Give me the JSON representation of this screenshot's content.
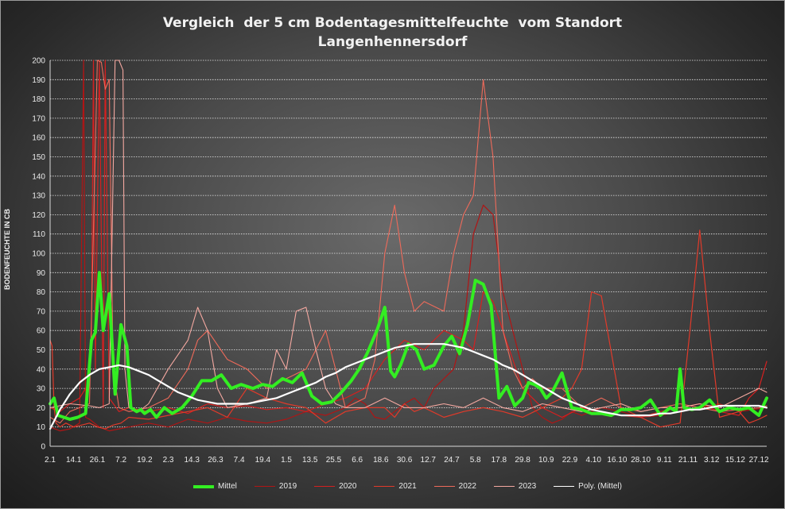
{
  "chart_data": {
    "type": "line",
    "title_line1": "Vergleich  der 5 cm Bodentagesmittelfeuchte  vom Standort",
    "title_line2": "Langenhennersdorf",
    "ylabel": "BODENFEUCHTE IN CB",
    "ylim": [
      0,
      200
    ],
    "yticks": [
      0,
      10,
      20,
      30,
      40,
      50,
      60,
      70,
      80,
      90,
      100,
      110,
      120,
      130,
      140,
      150,
      160,
      170,
      180,
      190,
      200
    ],
    "xticks": [
      "2.1",
      "14.1",
      "26.1",
      "7.2",
      "19.2",
      "2.3",
      "14.3",
      "26.3",
      "7.4",
      "19.4",
      "1.5",
      "13.5",
      "25.5",
      "6.6",
      "18.6",
      "30.6",
      "12.7",
      "24.7",
      "5.8",
      "17.8",
      "29.8",
      "10.9",
      "22.9",
      "4.10",
      "16.10",
      "28.10",
      "9.11",
      "21.11",
      "3.12",
      "15.12",
      "27.12"
    ],
    "grid": true,
    "legend_position": "bottom",
    "series": [
      {
        "name": "Mittel",
        "color": "#33ee22",
        "width": 4,
        "x": [
          0,
          2,
          4,
          7,
          10,
          14,
          18,
          21,
          23,
          25,
          27,
          30,
          33,
          36,
          39,
          41,
          44,
          46,
          48,
          51,
          54,
          58,
          62,
          67,
          72,
          77,
          82,
          87,
          92,
          97,
          103,
          108,
          113,
          118,
          123,
          128,
          133,
          138,
          143,
          148,
          153,
          157,
          161,
          166,
          170,
          173,
          175,
          178,
          182,
          186,
          190,
          195,
          200,
          204,
          208,
          212,
          216,
          220,
          224,
          228,
          232,
          236,
          240,
          243,
          246,
          249,
          252,
          255,
          260,
          265,
          270,
          275,
          280,
          285,
          290,
          295,
          300,
          305,
          310,
          315,
          318,
          320,
          322,
          326,
          330,
          335,
          340,
          345,
          350,
          355,
          360,
          364
        ],
        "y": [
          22,
          25,
          16,
          15,
          14,
          15,
          17,
          55,
          59,
          90,
          60,
          79,
          27,
          63,
          52,
          20,
          18,
          19,
          17,
          19,
          15,
          20,
          17,
          20,
          26,
          34,
          34,
          37,
          30,
          32,
          30,
          32,
          31,
          35,
          33,
          38,
          26,
          22,
          23,
          28,
          34,
          40,
          48,
          60,
          72,
          39,
          36,
          42,
          53,
          50,
          40,
          42,
          52,
          57,
          48,
          63,
          86,
          84,
          73,
          25,
          31,
          21,
          25,
          33,
          32,
          30,
          25,
          28,
          38,
          20,
          19,
          17,
          17,
          16,
          19,
          19,
          20,
          24,
          16,
          20,
          18,
          40,
          20,
          19,
          20,
          24,
          18,
          20,
          19,
          20,
          16,
          25
        ]
      },
      {
        "name": "2019",
        "color": "#b01515",
        "width": 1.2,
        "x": [
          0,
          5,
          10,
          15,
          17,
          18,
          20,
          25,
          30,
          35,
          40,
          50,
          60,
          70,
          80,
          90,
          100,
          110,
          120,
          130,
          140,
          150,
          155,
          160,
          165,
          170,
          175,
          180,
          185,
          190,
          195,
          200,
          205,
          210,
          215,
          220,
          225,
          230,
          235,
          240,
          245,
          250,
          255,
          260,
          265,
          270,
          280,
          290,
          300,
          310,
          320,
          330,
          340,
          350,
          364
        ],
        "y": [
          10,
          8,
          9,
          12,
          200,
          15,
          14,
          10,
          8,
          9,
          10,
          12,
          10,
          14,
          12,
          15,
          13,
          12,
          14,
          18,
          16,
          20,
          25,
          22,
          15,
          14,
          18,
          22,
          25,
          20,
          30,
          35,
          40,
          60,
          110,
          125,
          120,
          80,
          60,
          40,
          20,
          15,
          12,
          14,
          18,
          16,
          20,
          18,
          15,
          16,
          18,
          20,
          22,
          18,
          20
        ]
      },
      {
        "name": "2020",
        "color": "#d42020",
        "width": 1.2,
        "x": [
          0,
          5,
          10,
          15,
          18,
          20,
          21,
          22,
          23,
          25,
          27,
          28,
          30,
          35,
          40,
          45,
          50,
          60,
          70,
          80,
          90,
          100,
          110,
          120,
          130,
          140,
          150,
          160,
          170,
          180,
          190,
          200,
          210,
          215,
          220,
          225,
          230,
          240,
          250,
          260,
          270,
          280,
          290,
          300,
          310,
          320,
          330,
          340,
          350,
          355,
          360,
          364
        ],
        "y": [
          20,
          18,
          22,
          25,
          30,
          30,
          60,
          200,
          40,
          200,
          20,
          200,
          25,
          18,
          20,
          19,
          18,
          20,
          17,
          22,
          20,
          21,
          19,
          20,
          18,
          22,
          25,
          30,
          45,
          55,
          50,
          60,
          55,
          50,
          80,
          75,
          60,
          30,
          20,
          15,
          20,
          18,
          16,
          15,
          18,
          20,
          22,
          18,
          16,
          25,
          30,
          44
        ]
      },
      {
        "name": "2021",
        "color": "#e03a2a",
        "width": 1.2,
        "x": [
          0,
          1,
          2,
          3,
          5,
          8,
          12,
          16,
          20,
          24,
          28,
          32,
          36,
          40,
          50,
          60,
          70,
          80,
          90,
          100,
          110,
          120,
          130,
          140,
          150,
          160,
          170,
          175,
          180,
          185,
          190,
          200,
          210,
          220,
          230,
          240,
          250,
          260,
          265,
          270,
          275,
          280,
          290,
          300,
          310,
          320,
          325,
          330,
          335,
          340,
          350,
          355,
          360,
          364
        ],
        "y": [
          55,
          52,
          20,
          12,
          10,
          12,
          10,
          11,
          12,
          10,
          9,
          11,
          12,
          15,
          14,
          16,
          18,
          20,
          15,
          30,
          25,
          22,
          20,
          12,
          18,
          20,
          20,
          15,
          22,
          18,
          20,
          15,
          18,
          20,
          18,
          15,
          20,
          25,
          30,
          40,
          80,
          78,
          20,
          15,
          10,
          12,
          60,
          112,
          60,
          15,
          18,
          12,
          14,
          16
        ]
      },
      {
        "name": "2022",
        "color": "#ee6a5a",
        "width": 1.1,
        "x": [
          0,
          5,
          10,
          15,
          20,
          24,
          26,
          28,
          30,
          32,
          35,
          40,
          50,
          60,
          70,
          75,
          80,
          90,
          100,
          110,
          120,
          130,
          135,
          140,
          150,
          160,
          165,
          170,
          175,
          180,
          185,
          190,
          200,
          205,
          210,
          215,
          220,
          225,
          230,
          235,
          240,
          245,
          250,
          260,
          270,
          280,
          290,
          300,
          310,
          320,
          330,
          340,
          350,
          360,
          364
        ],
        "y": [
          15,
          12,
          18,
          20,
          22,
          200,
          199,
          185,
          190,
          40,
          20,
          18,
          20,
          25,
          40,
          55,
          60,
          45,
          40,
          30,
          35,
          40,
          50,
          60,
          20,
          25,
          45,
          100,
          125,
          90,
          70,
          75,
          70,
          100,
          120,
          130,
          190,
          150,
          60,
          40,
          30,
          35,
          30,
          30,
          20,
          25,
          20,
          18,
          20,
          22,
          20,
          18,
          19,
          20,
          21
        ]
      },
      {
        "name": "2023",
        "color": "#f4a8a0",
        "width": 1.1,
        "x": [
          0,
          10,
          20,
          25,
          30,
          33,
          35,
          37,
          38,
          40,
          45,
          50,
          60,
          70,
          75,
          80,
          85,
          90,
          100,
          110,
          115,
          120,
          125,
          130,
          135,
          140,
          145,
          150,
          160,
          170,
          180,
          190,
          200,
          210,
          220,
          230,
          240,
          250,
          260,
          270,
          280,
          290,
          300,
          310,
          320,
          330,
          340,
          350,
          360,
          364
        ],
        "y": [
          20,
          22,
          21,
          20,
          22,
          200,
          200,
          195,
          40,
          20,
          18,
          22,
          40,
          55,
          72,
          60,
          30,
          20,
          22,
          25,
          50,
          40,
          70,
          72,
          50,
          30,
          22,
          20,
          20,
          25,
          20,
          20,
          22,
          20,
          25,
          20,
          18,
          22,
          20,
          18,
          20,
          22,
          18,
          20,
          20,
          22,
          20,
          25,
          30,
          28
        ]
      },
      {
        "name": "Poly. (Mittel)",
        "color": "#ffffff",
        "width": 2.2,
        "x": [
          0,
          5,
          10,
          15,
          20,
          25,
          30,
          35,
          40,
          45,
          50,
          55,
          60,
          65,
          70,
          75,
          80,
          85,
          90,
          95,
          100,
          105,
          110,
          115,
          120,
          125,
          130,
          135,
          140,
          145,
          150,
          155,
          160,
          165,
          170,
          175,
          180,
          185,
          190,
          195,
          200,
          205,
          210,
          215,
          220,
          225,
          230,
          235,
          240,
          245,
          250,
          255,
          260,
          265,
          270,
          275,
          280,
          285,
          290,
          295,
          300,
          305,
          310,
          315,
          320,
          325,
          330,
          335,
          340,
          345,
          350,
          355,
          360,
          364
        ],
        "y": [
          9,
          19,
          27,
          33,
          37,
          40,
          41,
          42,
          41,
          39,
          37,
          34,
          31,
          28,
          26,
          24,
          23,
          22,
          22,
          22,
          22,
          23,
          24,
          25,
          27,
          29,
          31,
          33,
          36,
          38,
          41,
          43,
          45,
          47,
          49,
          51,
          52,
          53,
          53,
          53,
          53,
          52,
          51,
          49,
          47,
          45,
          42,
          40,
          37,
          34,
          31,
          28,
          25,
          23,
          21,
          19,
          18,
          17,
          16,
          16,
          16,
          16,
          17,
          17,
          18,
          19,
          19,
          20,
          21,
          21,
          21,
          21,
          21,
          20
        ]
      }
    ]
  }
}
